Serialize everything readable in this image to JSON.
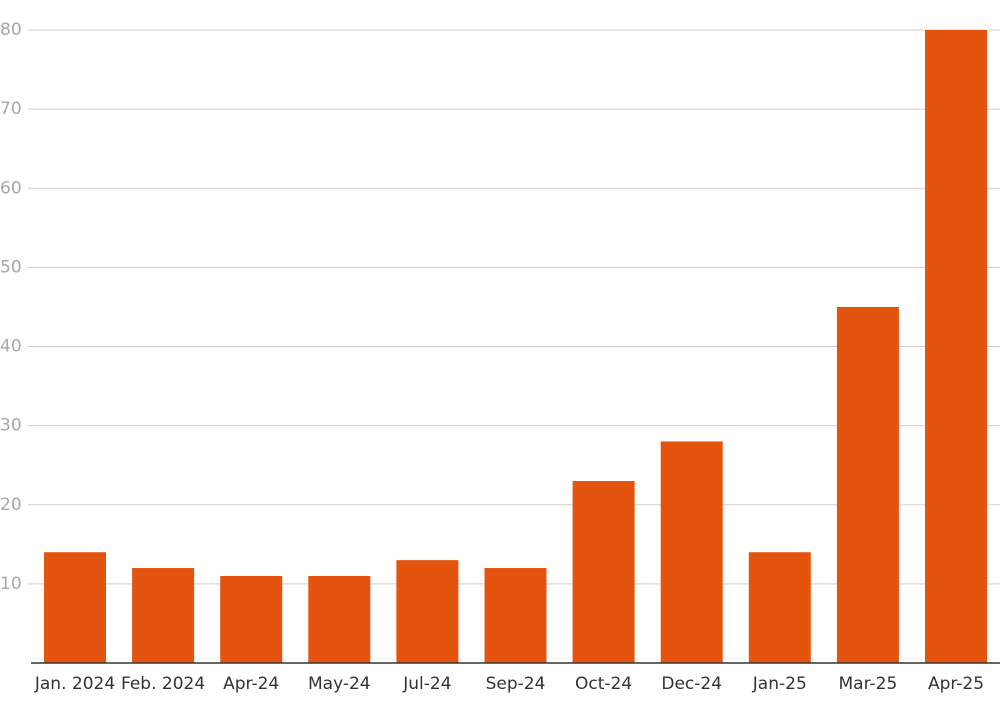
{
  "chart_data": {
    "type": "bar",
    "categories": [
      "Jan. 2024",
      "Feb. 2024",
      "Apr-24",
      "May-24",
      "Jul-24",
      "Sep-24",
      "Oct-24",
      "Dec-24",
      "Jan-25",
      "Mar-25",
      "Apr-25"
    ],
    "values": [
      14,
      12,
      11,
      11,
      13,
      12,
      23,
      28,
      14,
      45,
      80
    ],
    "color": "#e4540f",
    "ylim": [
      0,
      80
    ],
    "yticks": [
      10,
      20,
      30,
      40,
      50,
      60,
      70,
      80
    ],
    "grid": true
  }
}
